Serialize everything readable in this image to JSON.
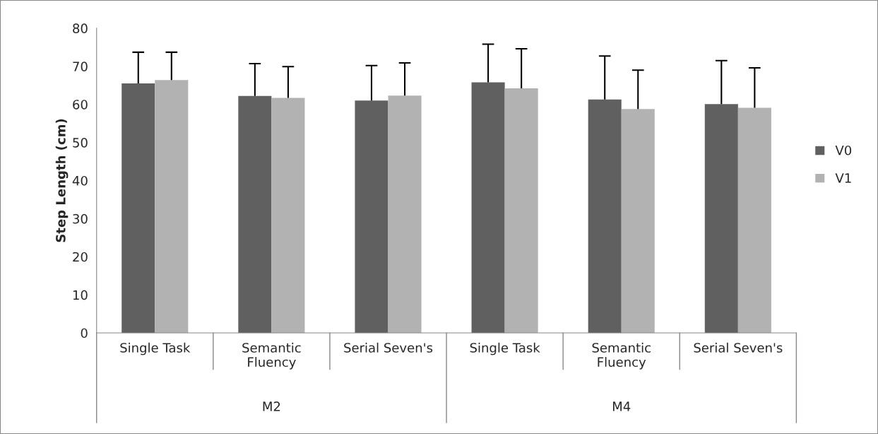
{
  "chart_data": {
    "type": "bar",
    "ylabel": "Step Length (cm)",
    "categories": [
      "Single Task",
      "Semantic Fluency",
      "Serial Seven's",
      "Single Task",
      "Semantic Fluency",
      "Serial Seven's"
    ],
    "annotations": [
      "M2",
      "M4"
    ],
    "series": [
      {
        "name": "V0",
        "color": "#606060",
        "values": [
          65.5,
          62.2,
          61.0,
          65.8,
          61.3,
          60.1
        ],
        "errors": [
          [
            65.5,
            73.7
          ],
          [
            62.2,
            70.7
          ],
          [
            61.0,
            70.2
          ],
          [
            65.8,
            75.8
          ],
          [
            61.3,
            72.7
          ],
          [
            60.1,
            71.5
          ]
        ]
      },
      {
        "name": "V1",
        "color": "#b2b2b2",
        "values": [
          66.4,
          61.7,
          62.3,
          64.2,
          58.8,
          59.1
        ],
        "errors": [
          [
            66.4,
            73.7
          ],
          [
            61.7,
            69.9
          ],
          [
            62.3,
            70.9
          ],
          [
            64.2,
            74.6
          ],
          [
            58.8,
            69.0
          ],
          [
            59.1,
            69.6
          ]
        ]
      }
    ],
    "ylim": [
      0,
      80
    ],
    "yticks": [
      0,
      10,
      20,
      30,
      40,
      50,
      60,
      70,
      80
    ],
    "grid": false,
    "legend": "right"
  }
}
